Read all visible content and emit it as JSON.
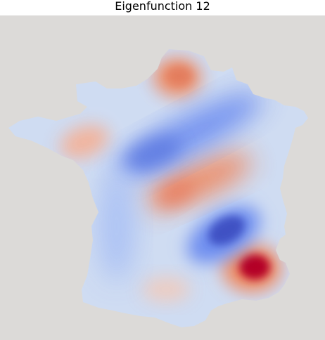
{
  "figure": {
    "title": "Eigenfunction 12"
  },
  "colors": {
    "background": "#dcdad8",
    "base": "#cfdcf2",
    "strong_red": "#b40426",
    "red": "#ef8a62",
    "light_red": "#f3b29a",
    "strong_blue": "#3b4cc0",
    "blue": "#6f8ff0"
  },
  "colormap": "coolwarm"
}
